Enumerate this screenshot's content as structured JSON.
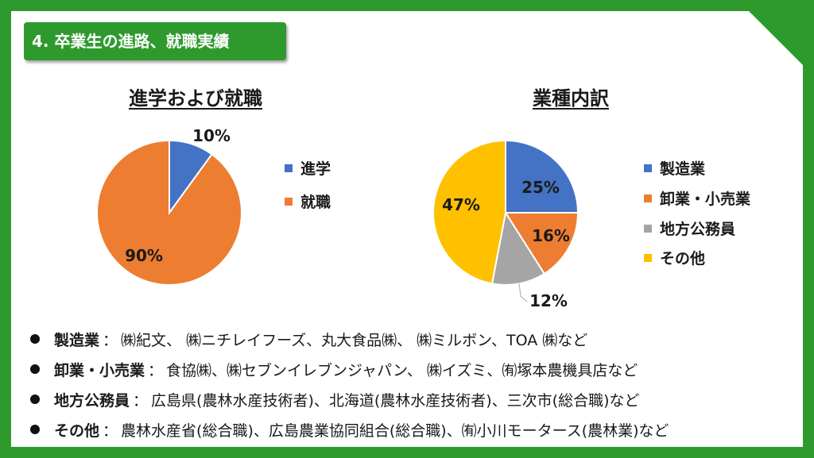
{
  "section": {
    "heading": "4. 卒業生の進路、就職実績"
  },
  "colors": {
    "frame": "#2e9a2e",
    "blue": "#4472c4",
    "orange": "#ed7d31",
    "gray": "#a5a5a5",
    "yellow": "#ffc000"
  },
  "chart_data": [
    {
      "type": "pie",
      "title": "進学および就職",
      "categories": [
        "進学",
        "就職"
      ],
      "values": [
        10,
        90
      ],
      "data_labels": [
        "10%",
        "90%"
      ],
      "colors": [
        "#4472c4",
        "#ed7d31"
      ],
      "legend": "right"
    },
    {
      "type": "pie",
      "title": "業種内訳",
      "categories": [
        "製造業",
        "卸業・小売業",
        "地方公務員",
        "その他"
      ],
      "values": [
        25,
        16,
        12,
        47
      ],
      "data_labels": [
        "25%",
        "16%",
        "12%",
        "47%"
      ],
      "colors": [
        "#4472c4",
        "#ed7d31",
        "#a5a5a5",
        "#ffc000"
      ],
      "legend": "right"
    }
  ],
  "details": [
    {
      "label": "製造業",
      "sep": " ：",
      "text": "㈱紀文、 ㈱ニチレイフーズ、丸大食品㈱、 ㈱ミルボン、TOA ㈱など"
    },
    {
      "label": "卸業・小売業",
      "sep": "：",
      "text": "食協㈱、㈱セブンイレブンジャパン、 ㈱イズミ、㈲塚本農機具店など"
    },
    {
      "label": "地方公務員",
      "sep": "：",
      "text": "広島県(農林水産技術者)、北海道(農林水産技術者)、三次市(総合職)など"
    },
    {
      "label": "その他",
      "sep": "：",
      "text": "農林水産省(総合職)、広島農業協同組合(総合職)、㈲小川モータース(農林業)など"
    }
  ]
}
